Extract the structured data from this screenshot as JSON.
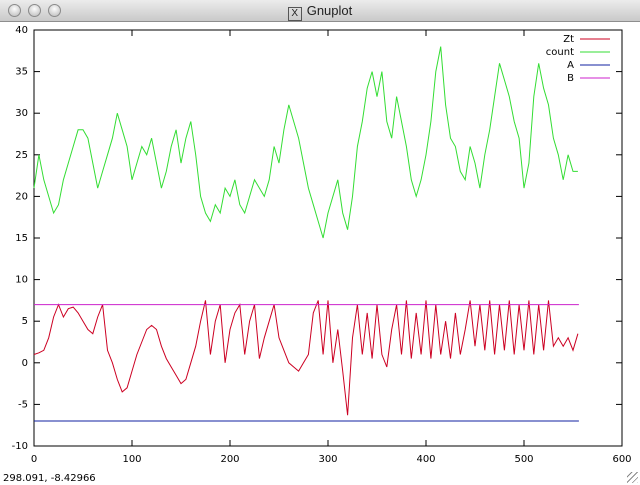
{
  "window_title": "Gnuplot",
  "status": "298.091, -8.42966",
  "chart_data": {
    "type": "line",
    "x": [
      0,
      5,
      10,
      15,
      20,
      25,
      30,
      35,
      40,
      45,
      50,
      55,
      60,
      65,
      70,
      75,
      80,
      85,
      90,
      95,
      100,
      105,
      110,
      115,
      120,
      125,
      130,
      135,
      140,
      145,
      150,
      155,
      160,
      165,
      170,
      175,
      180,
      185,
      190,
      195,
      200,
      205,
      210,
      215,
      220,
      225,
      230,
      235,
      240,
      245,
      250,
      255,
      260,
      265,
      270,
      275,
      280,
      285,
      290,
      295,
      300,
      305,
      310,
      315,
      320,
      325,
      330,
      335,
      340,
      345,
      350,
      355,
      360,
      365,
      370,
      375,
      380,
      385,
      390,
      395,
      400,
      405,
      410,
      415,
      420,
      425,
      430,
      435,
      440,
      445,
      450,
      455,
      460,
      465,
      470,
      475,
      480,
      485,
      490,
      495,
      500,
      505,
      510,
      515,
      520,
      525,
      530,
      535,
      540,
      545,
      550,
      555
    ],
    "series": [
      {
        "name": "Zt",
        "color": "#cc0022",
        "values": [
          1,
          1.2,
          1.5,
          3,
          5.5,
          7,
          5.5,
          6.5,
          6.7,
          6,
          5,
          4,
          3.5,
          5.5,
          7,
          1.5,
          0,
          -2,
          -3.5,
          -3,
          -1,
          1,
          2.5,
          4,
          4.5,
          4,
          2,
          0.5,
          -0.5,
          -1.5,
          -2.5,
          -2,
          0,
          2,
          5,
          7.5,
          1,
          5,
          7,
          0,
          4,
          6,
          7,
          1,
          5,
          7,
          0.5,
          3,
          5,
          7,
          3,
          1.5,
          0,
          -0.5,
          -1,
          0,
          1,
          6,
          7.5,
          1,
          7.5,
          0,
          4,
          -1,
          -6.3,
          3,
          7,
          1,
          6,
          0.5,
          7,
          1,
          -0.5,
          4,
          7,
          1,
          7.5,
          0.5,
          6,
          1,
          7.5,
          0.5,
          7,
          1,
          5,
          0.5,
          6,
          1,
          4,
          7.5,
          2,
          7,
          1.5,
          7.5,
          1,
          7,
          1.5,
          7.5,
          1,
          7,
          1.5,
          7.5,
          1,
          7,
          1.5,
          7.5,
          2,
          3,
          2,
          3,
          1.5,
          3.5
        ]
      },
      {
        "name": "count",
        "color": "#33dd33",
        "values": [
          21,
          25,
          22,
          20,
          18,
          19,
          22,
          24,
          26,
          28,
          28,
          27,
          24,
          21,
          23,
          25,
          27,
          30,
          28,
          26,
          22,
          24,
          26,
          25,
          27,
          24,
          21,
          23,
          26,
          28,
          24,
          27,
          29,
          25,
          20,
          18,
          17,
          19,
          18,
          21,
          20,
          22,
          19,
          18,
          20,
          22,
          21,
          20,
          22,
          26,
          24,
          28,
          31,
          29,
          27,
          24,
          21,
          19,
          17,
          15,
          18,
          20,
          22,
          18,
          16,
          20,
          26,
          29,
          33,
          35,
          32,
          35,
          29,
          27,
          32,
          29,
          26,
          22,
          20,
          22,
          25,
          29,
          35,
          38,
          31,
          27,
          26,
          23,
          22,
          26,
          24,
          21,
          25,
          28,
          32,
          36,
          34,
          32,
          29,
          27,
          21,
          24,
          32,
          36,
          33,
          31,
          27,
          25,
          22,
          25,
          23,
          23
        ]
      },
      {
        "name": "A",
        "color": "#1020a0",
        "x": [
          0,
          556
        ],
        "values": [
          -7,
          -7
        ]
      },
      {
        "name": "B",
        "color": "#cc22cc",
        "x": [
          0,
          556
        ],
        "values": [
          7,
          7
        ]
      }
    ],
    "xlim": [
      0,
      600
    ],
    "xticks": [
      0,
      100,
      200,
      300,
      400,
      500,
      600
    ],
    "ylim": [
      -10,
      40
    ],
    "yticks": [
      -10,
      -5,
      0,
      5,
      10,
      15,
      20,
      25,
      30,
      35,
      40
    ],
    "legend": "top-right"
  }
}
